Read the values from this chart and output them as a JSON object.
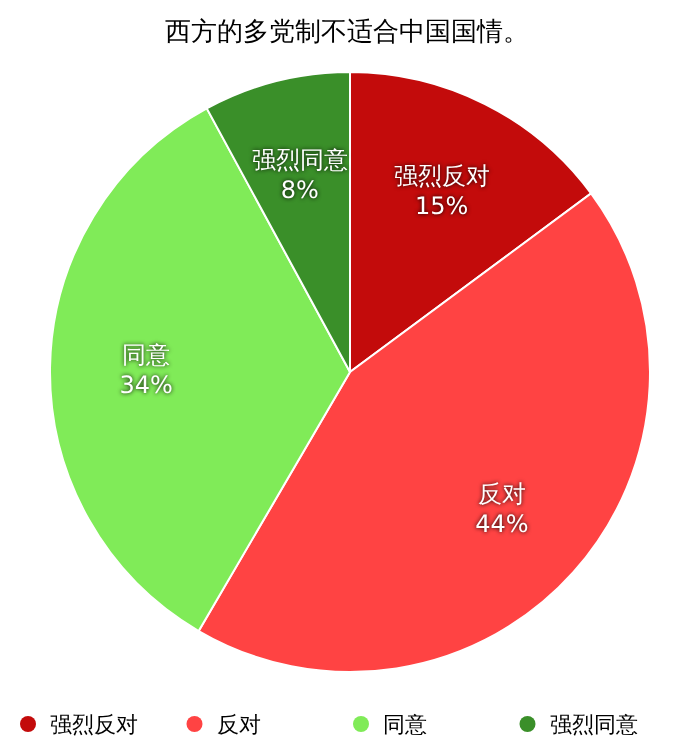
{
  "chart_data": {
    "type": "pie",
    "title": "西方的多党制不适合中国国情。",
    "categories": [
      "强烈反对",
      "反对",
      "同意",
      "强烈同意"
    ],
    "values": [
      15,
      44,
      34,
      8
    ],
    "value_labels": [
      "15%",
      "44%",
      "34%",
      "8%"
    ],
    "colors": [
      "#c30b0b",
      "#ff4343",
      "#80eb58",
      "#3a8f29"
    ],
    "legend": "bottom"
  }
}
